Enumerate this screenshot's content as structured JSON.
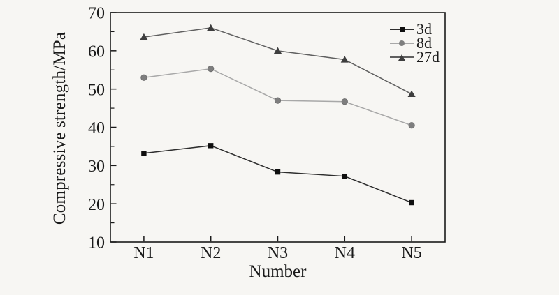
{
  "frame": {
    "axis_color": "#1a1a1a",
    "background": "#f7f6f3",
    "text_color": "#1a1a1a"
  },
  "chart_data": {
    "type": "line",
    "title": "",
    "xlabel": "Number",
    "ylabel": "Compressive strength/MPa",
    "categories": [
      "N1",
      "N2",
      "N3",
      "N4",
      "N5"
    ],
    "ylim": [
      10,
      70
    ],
    "yticks": [
      10,
      20,
      30,
      40,
      50,
      60,
      70
    ],
    "ytick_labels": [
      "10",
      "20",
      "30",
      "40",
      "50",
      "60",
      "70"
    ],
    "yminor_step": 5,
    "grid": false,
    "legend_position": "top-right-inside",
    "series": [
      {
        "name": "3d",
        "marker": "square",
        "marker_color": "#0f0f0f",
        "line_color": "#2d2d2d",
        "values": [
          33.2,
          35.2,
          28.3,
          27.2,
          20.3
        ]
      },
      {
        "name": "8d",
        "marker": "circle",
        "marker_color": "#7e7e7e",
        "line_color": "#a8a8a8",
        "values": [
          53.0,
          55.3,
          47.0,
          46.7,
          40.5
        ]
      },
      {
        "name": "27d",
        "marker": "triangle",
        "marker_color": "#3e3e3e",
        "line_color": "#5f5f5f",
        "values": [
          63.6,
          66.0,
          60.0,
          57.7,
          48.7
        ]
      }
    ]
  }
}
